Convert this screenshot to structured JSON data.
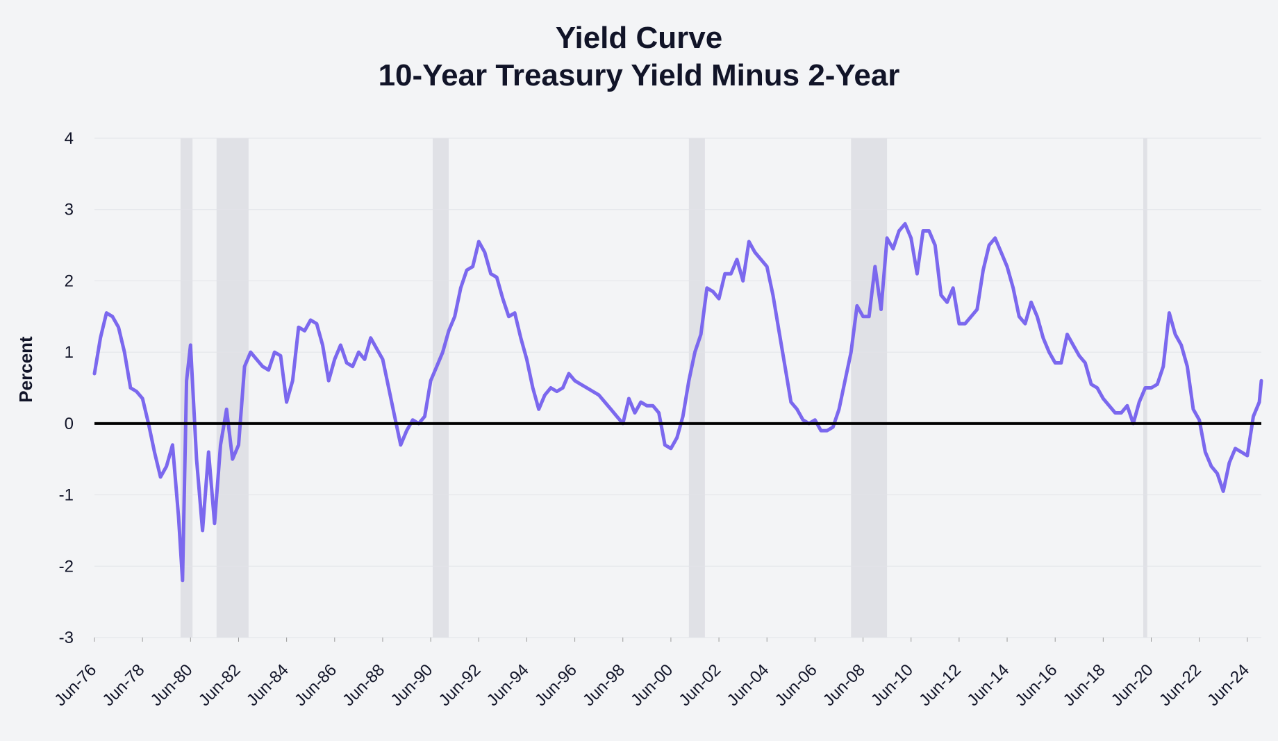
{
  "title": "Yield Curve",
  "subtitle": "10-Year Treasury Yield Minus 2-Year",
  "colors": {
    "background": "#f3f4f6",
    "line": "#7b68ee",
    "recession_band": "#e0e1e6",
    "zero_line": "#000000",
    "grid": "#e2e3e8",
    "text": "#111428"
  },
  "chart_data": {
    "type": "line",
    "title": "Yield Curve",
    "subtitle": "10-Year Treasury Yield Minus 2-Year",
    "ylabel": "Percent",
    "xlabel": "",
    "ylim": [
      -3,
      4
    ],
    "yticks": [
      4,
      3,
      2,
      1,
      0,
      -1,
      -2,
      -3
    ],
    "xlim": [
      "1976-06",
      "2025-01"
    ],
    "xtick_labels": [
      "Jun-76",
      "Jun-78",
      "Jun-80",
      "Jun-82",
      "Jun-84",
      "Jun-86",
      "Jun-88",
      "Jun-90",
      "Jun-92",
      "Jun-94",
      "Jun-96",
      "Jun-98",
      "Jun-00",
      "Jun-02",
      "Jun-04",
      "Jun-06",
      "Jun-08",
      "Jun-10",
      "Jun-12",
      "Jun-14",
      "Jun-16",
      "Jun-18",
      "Jun-20",
      "Jun-22",
      "Jun-24"
    ],
    "grid": true,
    "legend": "none",
    "recessions": [
      [
        "1980-01",
        "1980-07"
      ],
      [
        "1981-07",
        "1982-11"
      ],
      [
        "1990-07",
        "1991-03"
      ],
      [
        "2001-03",
        "2001-11"
      ],
      [
        "2007-12",
        "2009-06"
      ],
      [
        "2020-02",
        "2020-04"
      ]
    ],
    "series": [
      {
        "values": [
          [
            "1976-06",
            0.7
          ],
          [
            "1976-09",
            1.2
          ],
          [
            "1976-12",
            1.55
          ],
          [
            "1977-03",
            1.5
          ],
          [
            "1977-06",
            1.35
          ],
          [
            "1977-09",
            1.0
          ],
          [
            "1977-12",
            0.5
          ],
          [
            "1978-03",
            0.45
          ],
          [
            "1978-06",
            0.35
          ],
          [
            "1978-09",
            0.0
          ],
          [
            "1978-12",
            -0.4
          ],
          [
            "1979-03",
            -0.75
          ],
          [
            "1979-06",
            -0.6
          ],
          [
            "1979-09",
            -0.3
          ],
          [
            "1979-12",
            -1.3
          ],
          [
            "1980-02",
            -2.2
          ],
          [
            "1980-04",
            0.6
          ],
          [
            "1980-06",
            1.1
          ],
          [
            "1980-09",
            -0.5
          ],
          [
            "1980-12",
            -1.5
          ],
          [
            "1981-03",
            -0.4
          ],
          [
            "1981-06",
            -1.4
          ],
          [
            "1981-09",
            -0.3
          ],
          [
            "1981-12",
            0.2
          ],
          [
            "1982-03",
            -0.5
          ],
          [
            "1982-06",
            -0.3
          ],
          [
            "1982-09",
            0.8
          ],
          [
            "1982-12",
            1.0
          ],
          [
            "1983-03",
            0.9
          ],
          [
            "1983-06",
            0.8
          ],
          [
            "1983-09",
            0.75
          ],
          [
            "1983-12",
            1.0
          ],
          [
            "1984-03",
            0.95
          ],
          [
            "1984-06",
            0.3
          ],
          [
            "1984-09",
            0.6
          ],
          [
            "1984-12",
            1.35
          ],
          [
            "1985-03",
            1.3
          ],
          [
            "1985-06",
            1.45
          ],
          [
            "1985-09",
            1.4
          ],
          [
            "1985-12",
            1.1
          ],
          [
            "1986-03",
            0.6
          ],
          [
            "1986-06",
            0.9
          ],
          [
            "1986-09",
            1.1
          ],
          [
            "1986-12",
            0.85
          ],
          [
            "1987-03",
            0.8
          ],
          [
            "1987-06",
            1.0
          ],
          [
            "1987-09",
            0.9
          ],
          [
            "1987-12",
            1.2
          ],
          [
            "1988-03",
            1.05
          ],
          [
            "1988-06",
            0.9
          ],
          [
            "1988-09",
            0.5
          ],
          [
            "1988-12",
            0.1
          ],
          [
            "1989-03",
            -0.3
          ],
          [
            "1989-06",
            -0.1
          ],
          [
            "1989-09",
            0.05
          ],
          [
            "1989-12",
            0.0
          ],
          [
            "1990-03",
            0.1
          ],
          [
            "1990-06",
            0.6
          ],
          [
            "1990-09",
            0.8
          ],
          [
            "1990-12",
            1.0
          ],
          [
            "1991-03",
            1.3
          ],
          [
            "1991-06",
            1.5
          ],
          [
            "1991-09",
            1.9
          ],
          [
            "1991-12",
            2.15
          ],
          [
            "1992-03",
            2.2
          ],
          [
            "1992-06",
            2.55
          ],
          [
            "1992-09",
            2.4
          ],
          [
            "1992-12",
            2.1
          ],
          [
            "1993-03",
            2.05
          ],
          [
            "1993-06",
            1.75
          ],
          [
            "1993-09",
            1.5
          ],
          [
            "1993-12",
            1.55
          ],
          [
            "1994-03",
            1.2
          ],
          [
            "1994-06",
            0.9
          ],
          [
            "1994-09",
            0.5
          ],
          [
            "1994-12",
            0.2
          ],
          [
            "1995-03",
            0.4
          ],
          [
            "1995-06",
            0.5
          ],
          [
            "1995-09",
            0.45
          ],
          [
            "1995-12",
            0.5
          ],
          [
            "1996-03",
            0.7
          ],
          [
            "1996-06",
            0.6
          ],
          [
            "1996-09",
            0.55
          ],
          [
            "1996-12",
            0.5
          ],
          [
            "1997-03",
            0.45
          ],
          [
            "1997-06",
            0.4
          ],
          [
            "1997-09",
            0.3
          ],
          [
            "1997-12",
            0.2
          ],
          [
            "1998-03",
            0.1
          ],
          [
            "1998-06",
            0.0
          ],
          [
            "1998-09",
            0.35
          ],
          [
            "1998-12",
            0.15
          ],
          [
            "1999-03",
            0.3
          ],
          [
            "1999-06",
            0.25
          ],
          [
            "1999-09",
            0.25
          ],
          [
            "1999-12",
            0.15
          ],
          [
            "2000-03",
            -0.3
          ],
          [
            "2000-06",
            -0.35
          ],
          [
            "2000-09",
            -0.2
          ],
          [
            "2000-12",
            0.1
          ],
          [
            "2001-03",
            0.6
          ],
          [
            "2001-06",
            1.0
          ],
          [
            "2001-09",
            1.25
          ],
          [
            "2001-12",
            1.9
          ],
          [
            "2002-03",
            1.85
          ],
          [
            "2002-06",
            1.75
          ],
          [
            "2002-09",
            2.1
          ],
          [
            "2002-12",
            2.1
          ],
          [
            "2003-03",
            2.3
          ],
          [
            "2003-06",
            2.0
          ],
          [
            "2003-09",
            2.55
          ],
          [
            "2003-12",
            2.4
          ],
          [
            "2004-03",
            2.3
          ],
          [
            "2004-06",
            2.2
          ],
          [
            "2004-09",
            1.8
          ],
          [
            "2004-12",
            1.3
          ],
          [
            "2005-03",
            0.8
          ],
          [
            "2005-06",
            0.3
          ],
          [
            "2005-09",
            0.2
          ],
          [
            "2005-12",
            0.05
          ],
          [
            "2006-03",
            0.0
          ],
          [
            "2006-06",
            0.05
          ],
          [
            "2006-09",
            -0.1
          ],
          [
            "2006-12",
            -0.1
          ],
          [
            "2007-03",
            -0.05
          ],
          [
            "2007-06",
            0.2
          ],
          [
            "2007-09",
            0.6
          ],
          [
            "2007-12",
            1.0
          ],
          [
            "2008-03",
            1.65
          ],
          [
            "2008-06",
            1.5
          ],
          [
            "2008-09",
            1.5
          ],
          [
            "2008-12",
            2.2
          ],
          [
            "2009-03",
            1.6
          ],
          [
            "2009-06",
            2.6
          ],
          [
            "2009-09",
            2.45
          ],
          [
            "2009-12",
            2.7
          ],
          [
            "2010-03",
            2.8
          ],
          [
            "2010-06",
            2.6
          ],
          [
            "2010-09",
            2.1
          ],
          [
            "2010-12",
            2.7
          ],
          [
            "2011-03",
            2.7
          ],
          [
            "2011-06",
            2.5
          ],
          [
            "2011-09",
            1.8
          ],
          [
            "2011-12",
            1.7
          ],
          [
            "2012-03",
            1.9
          ],
          [
            "2012-06",
            1.4
          ],
          [
            "2012-09",
            1.4
          ],
          [
            "2012-12",
            1.5
          ],
          [
            "2013-03",
            1.6
          ],
          [
            "2013-06",
            2.15
          ],
          [
            "2013-09",
            2.5
          ],
          [
            "2013-12",
            2.6
          ],
          [
            "2014-03",
            2.4
          ],
          [
            "2014-06",
            2.2
          ],
          [
            "2014-09",
            1.9
          ],
          [
            "2014-12",
            1.5
          ],
          [
            "2015-03",
            1.4
          ],
          [
            "2015-06",
            1.7
          ],
          [
            "2015-09",
            1.5
          ],
          [
            "2015-12",
            1.2
          ],
          [
            "2016-03",
            1.0
          ],
          [
            "2016-06",
            0.85
          ],
          [
            "2016-09",
            0.85
          ],
          [
            "2016-12",
            1.25
          ],
          [
            "2017-03",
            1.1
          ],
          [
            "2017-06",
            0.95
          ],
          [
            "2017-09",
            0.85
          ],
          [
            "2017-12",
            0.55
          ],
          [
            "2018-03",
            0.5
          ],
          [
            "2018-06",
            0.35
          ],
          [
            "2018-09",
            0.25
          ],
          [
            "2018-12",
            0.15
          ],
          [
            "2019-03",
            0.15
          ],
          [
            "2019-06",
            0.25
          ],
          [
            "2019-09",
            0.0
          ],
          [
            "2019-12",
            0.3
          ],
          [
            "2020-03",
            0.5
          ],
          [
            "2020-06",
            0.5
          ],
          [
            "2020-09",
            0.55
          ],
          [
            "2020-12",
            0.8
          ],
          [
            "2021-03",
            1.55
          ],
          [
            "2021-06",
            1.25
          ],
          [
            "2021-09",
            1.1
          ],
          [
            "2021-12",
            0.8
          ],
          [
            "2022-03",
            0.2
          ],
          [
            "2022-06",
            0.05
          ],
          [
            "2022-09",
            -0.4
          ],
          [
            "2022-12",
            -0.6
          ],
          [
            "2023-03",
            -0.7
          ],
          [
            "2023-06",
            -0.95
          ],
          [
            "2023-09",
            -0.55
          ],
          [
            "2023-12",
            -0.35
          ],
          [
            "2024-03",
            -0.4
          ],
          [
            "2024-06",
            -0.45
          ],
          [
            "2024-09",
            0.1
          ],
          [
            "2024-12",
            0.3
          ],
          [
            "2025-01",
            0.6
          ]
        ]
      }
    ]
  }
}
